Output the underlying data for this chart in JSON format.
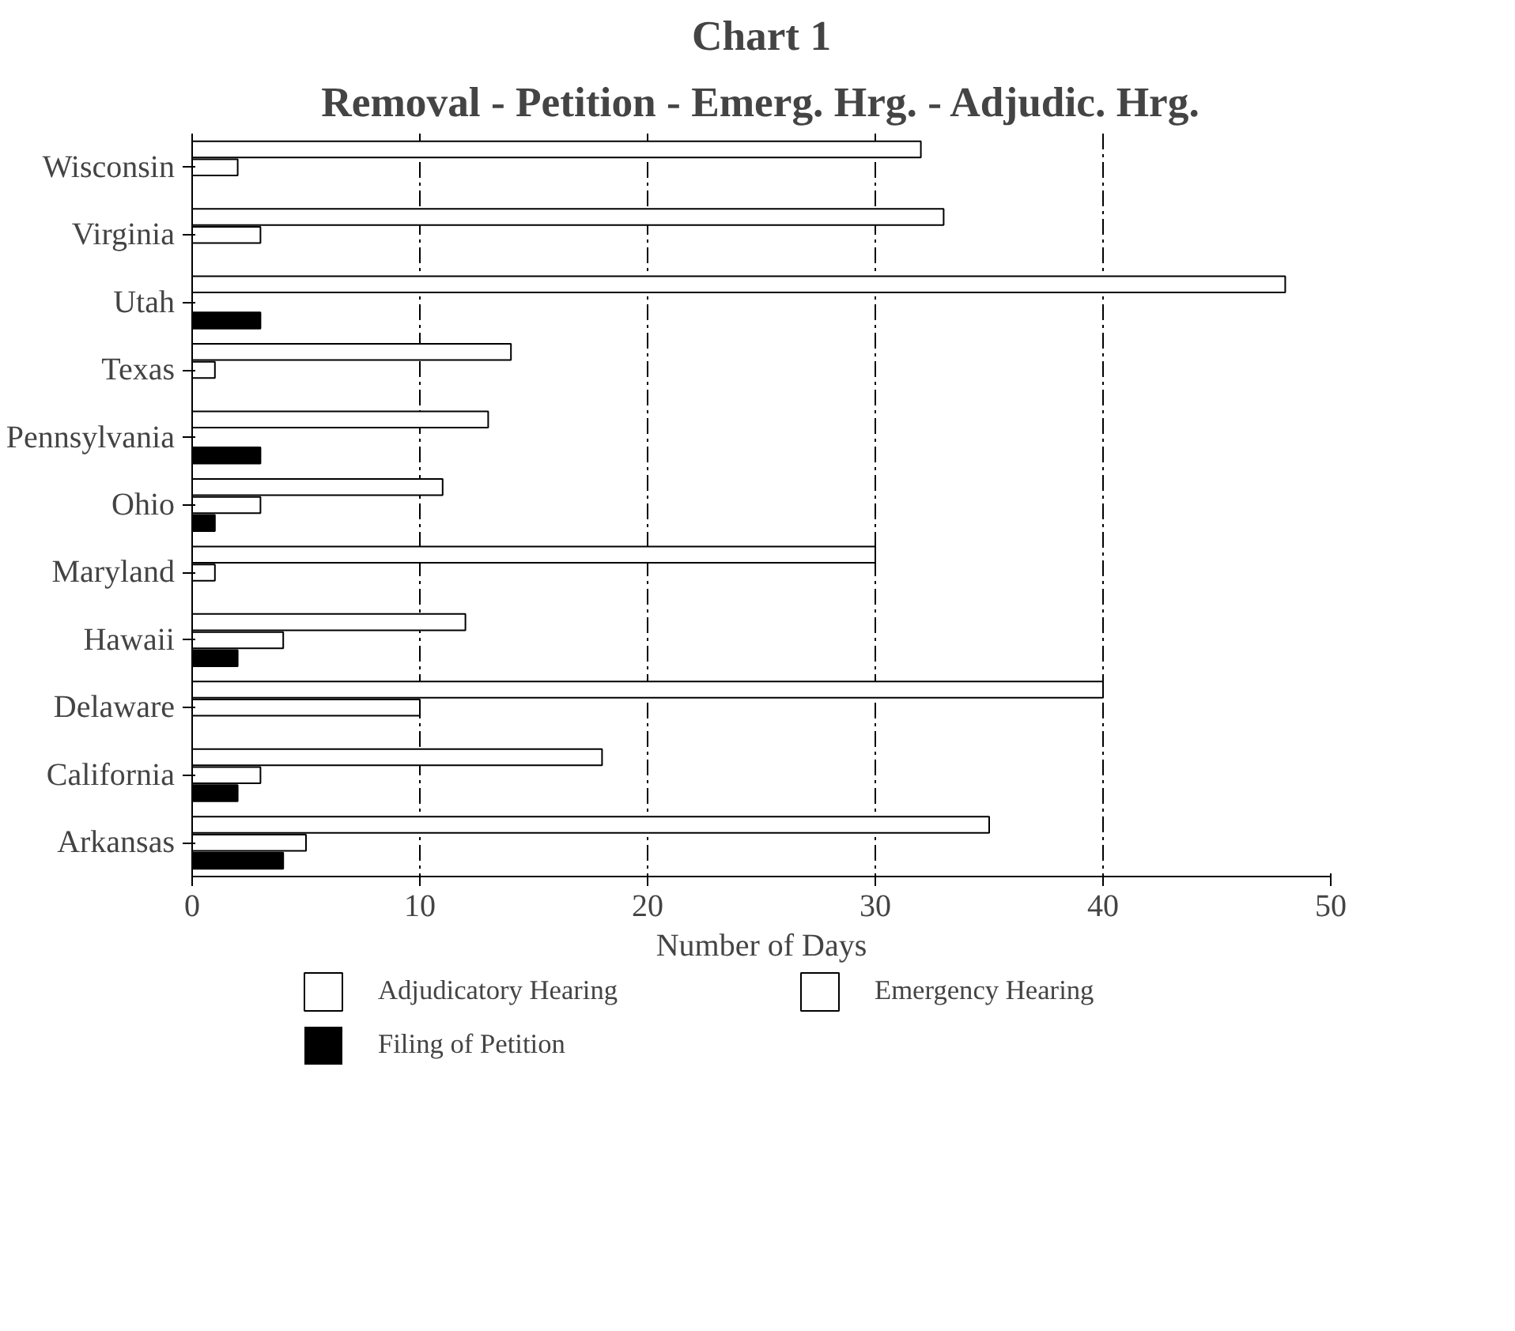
{
  "chart_data": {
    "type": "bar",
    "orientation": "horizontal",
    "title": "Chart 1",
    "subtitle": "Removal - Petition - Emerg. Hrg. - Adjudic. Hrg.",
    "xlabel": "Number of Days",
    "categories": [
      "Wisconsin",
      "Virginia",
      "Utah",
      "Texas",
      "Pennsylvania",
      "Ohio",
      "Maryland",
      "Hawaii",
      "Delaware",
      "California",
      "Arkansas"
    ],
    "series": [
      {
        "name": "Adjudicatory Hearing",
        "color": "#ffffff",
        "values": [
          32,
          33,
          48,
          14,
          13,
          11,
          30,
          12,
          40,
          18,
          35
        ]
      },
      {
        "name": "Emergency Hearing",
        "color": "#ffffff",
        "values": [
          2,
          3,
          0,
          1,
          0,
          3,
          1,
          4,
          10,
          3,
          5
        ]
      },
      {
        "name": "Filing of Petition",
        "color": "#000000",
        "values": [
          0,
          0,
          3,
          0,
          3,
          1,
          0,
          2,
          0,
          2,
          4
        ]
      }
    ],
    "xlim": [
      0,
      50
    ],
    "xticks": [
      0,
      10,
      20,
      30,
      40,
      50
    ],
    "grid": "x",
    "legend": "bottom"
  }
}
